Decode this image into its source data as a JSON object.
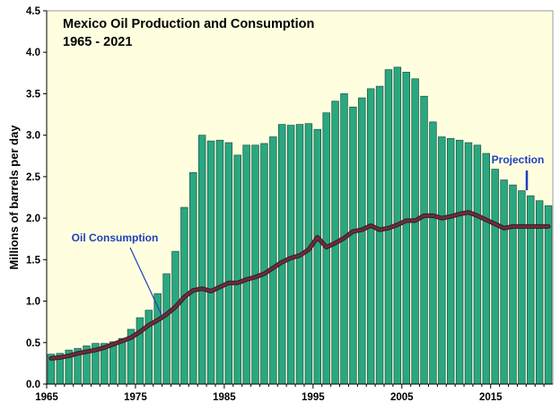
{
  "chart_data": {
    "type": "bar",
    "title_line1": "Mexico Oil Production and Consumption",
    "title_line2": "1965 - 2021",
    "ylabel": "Millions of barrels per day",
    "xlabel": "",
    "ylim": [
      0,
      4.5
    ],
    "xlim": [
      1965,
      2021
    ],
    "y_ticks": [
      "0.0",
      "0.5",
      "1.0",
      "1.5",
      "2.0",
      "2.5",
      "3.0",
      "3.5",
      "4.0",
      "4.5"
    ],
    "x_ticks": [
      "1965",
      "1975",
      "1985",
      "1995",
      "2005",
      "2015"
    ],
    "grid": false,
    "colors": {
      "plot_bg": "#ffffe0",
      "bar_fill": "#29a880",
      "bar_stroke": "#1d4f46",
      "line": "#6b2d3a",
      "annotation_text": "#1f3fbf",
      "annotation_line": "#1f3fbf"
    },
    "series": [
      {
        "name": "Oil Production",
        "type": "bar",
        "x": [
          1965,
          1966,
          1967,
          1968,
          1969,
          1970,
          1971,
          1972,
          1973,
          1974,
          1975,
          1976,
          1977,
          1978,
          1979,
          1980,
          1981,
          1982,
          1983,
          1984,
          1985,
          1986,
          1987,
          1988,
          1989,
          1990,
          1991,
          1992,
          1993,
          1994,
          1995,
          1996,
          1997,
          1998,
          1999,
          2000,
          2001,
          2002,
          2003,
          2004,
          2005,
          2006,
          2007,
          2008,
          2009,
          2010,
          2011,
          2012,
          2013,
          2014,
          2015,
          2016,
          2017,
          2018,
          2019,
          2020,
          2021
        ],
        "values": [
          0.36,
          0.37,
          0.41,
          0.43,
          0.46,
          0.49,
          0.49,
          0.51,
          0.55,
          0.66,
          0.8,
          0.89,
          1.09,
          1.33,
          1.6,
          2.13,
          2.55,
          3.0,
          2.93,
          2.94,
          2.91,
          2.76,
          2.88,
          2.88,
          2.9,
          2.98,
          3.13,
          3.12,
          3.13,
          3.14,
          3.07,
          3.27,
          3.41,
          3.5,
          3.34,
          3.45,
          3.56,
          3.59,
          3.79,
          3.82,
          3.76,
          3.68,
          3.47,
          3.16,
          2.98,
          2.96,
          2.94,
          2.91,
          2.88,
          2.78,
          2.59,
          2.46,
          2.4,
          2.33,
          2.27,
          2.21,
          2.15
        ]
      },
      {
        "name": "Oil Consumption",
        "type": "line",
        "x": [
          1965,
          1966,
          1967,
          1968,
          1969,
          1970,
          1971,
          1972,
          1973,
          1974,
          1975,
          1976,
          1977,
          1978,
          1979,
          1980,
          1981,
          1982,
          1983,
          1984,
          1985,
          1986,
          1987,
          1988,
          1989,
          1990,
          1991,
          1992,
          1993,
          1994,
          1995,
          1996,
          1997,
          1998,
          1999,
          2000,
          2001,
          2002,
          2003,
          2004,
          2005,
          2006,
          2007,
          2008,
          2009,
          2010,
          2011,
          2012,
          2013,
          2014,
          2015,
          2016,
          2017,
          2018,
          2019,
          2020,
          2021
        ],
        "values": [
          0.31,
          0.32,
          0.34,
          0.37,
          0.39,
          0.41,
          0.44,
          0.48,
          0.52,
          0.56,
          0.63,
          0.71,
          0.77,
          0.84,
          0.93,
          1.05,
          1.13,
          1.15,
          1.12,
          1.17,
          1.22,
          1.22,
          1.26,
          1.29,
          1.33,
          1.4,
          1.47,
          1.52,
          1.55,
          1.62,
          1.77,
          1.65,
          1.7,
          1.76,
          1.84,
          1.86,
          1.91,
          1.86,
          1.88,
          1.92,
          1.97,
          1.97,
          2.03,
          2.03,
          2.0,
          2.02,
          2.05,
          2.07,
          2.03,
          1.98,
          1.93,
          1.88,
          1.9,
          1.9,
          1.9,
          1.9,
          1.9
        ]
      }
    ],
    "annotations": [
      {
        "text": "Oil Consumption",
        "target_x": 1977.5,
        "target_y": 0.82,
        "placement": "upper-left of line"
      },
      {
        "text": "Projection",
        "target_x": 2019,
        "target_y": 2.3,
        "placement": "above last bars"
      }
    ]
  }
}
